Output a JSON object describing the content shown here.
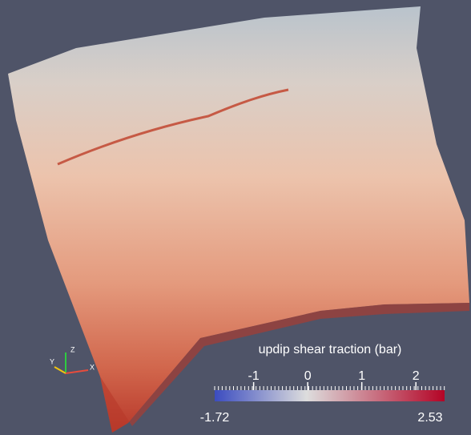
{
  "colorbar": {
    "title": "updip shear traction (bar)",
    "ticks": [
      -1,
      0,
      1,
      2
    ],
    "range": [
      -1.72,
      2.53
    ]
  },
  "orientation_axes": {
    "labels": [
      "Z",
      "Y",
      "X"
    ]
  }
}
